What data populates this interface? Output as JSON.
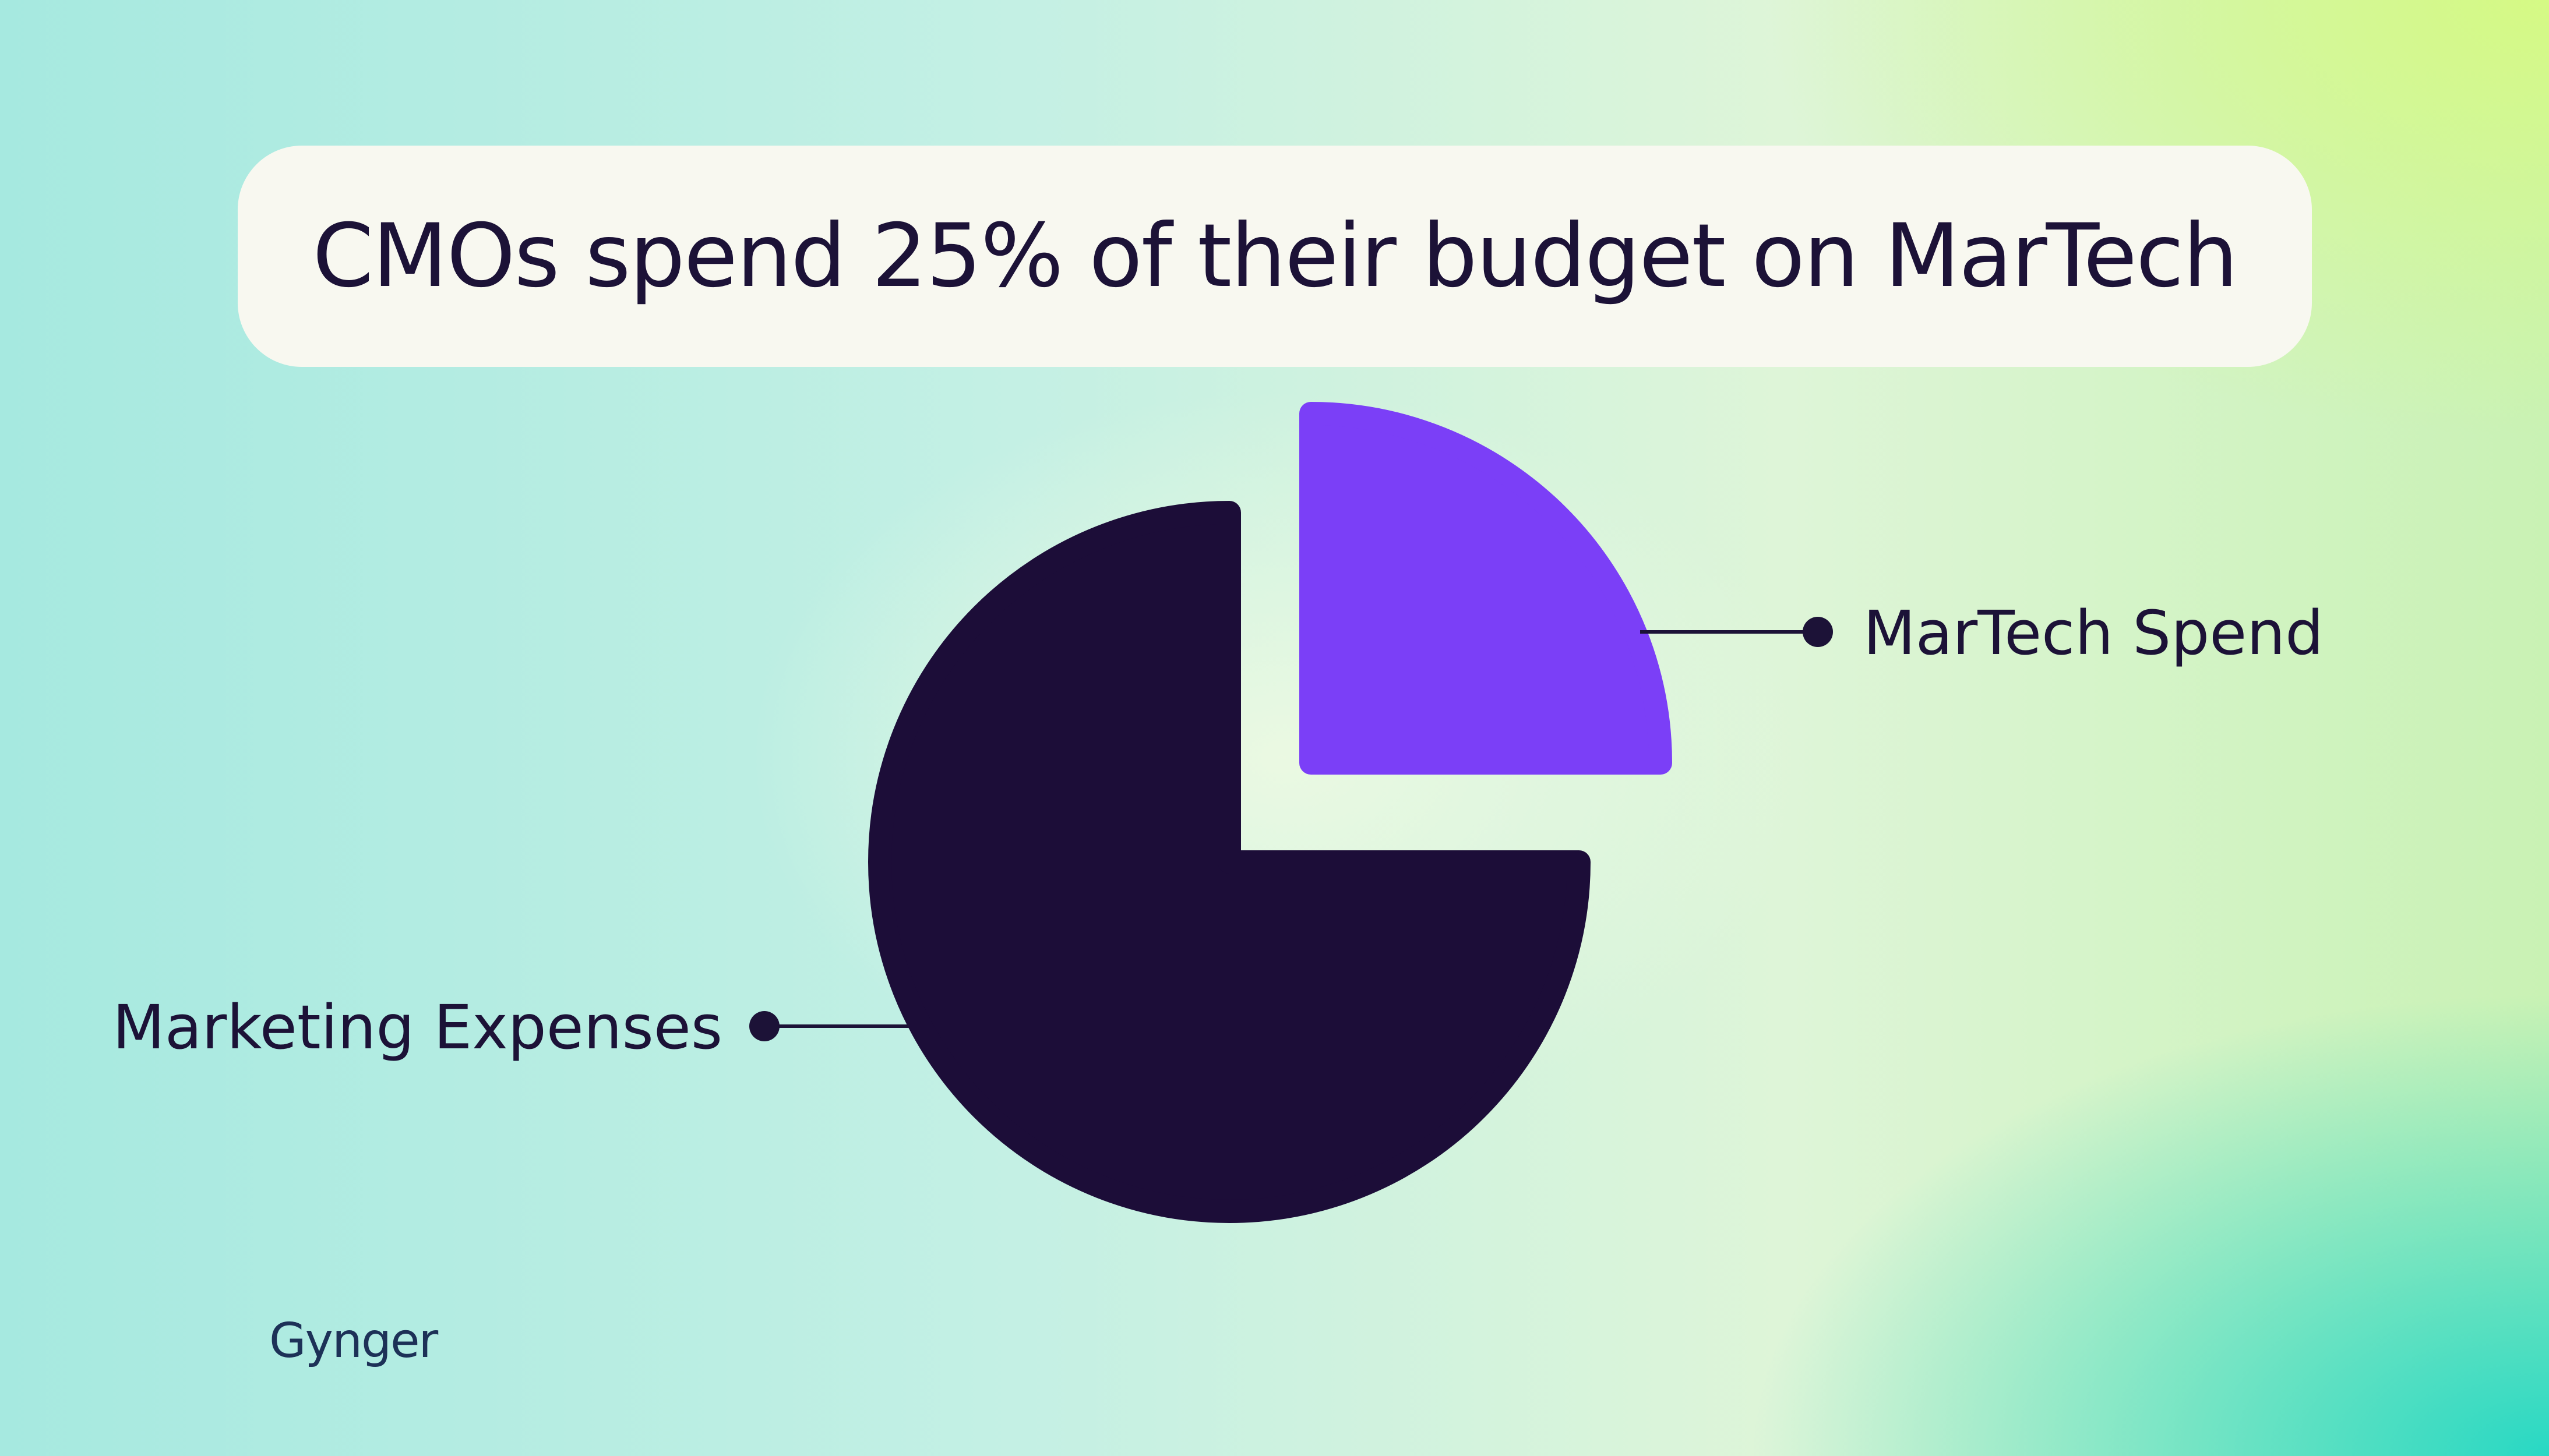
{
  "title": "CMOs spend 25% of their budget on MarTech",
  "logo": "Gynger",
  "colors": {
    "martech": "#7b3ff7",
    "marketing": "#1c0d38",
    "leader": "#1c1237",
    "title_box": "#f8f8f0"
  },
  "chart_data": {
    "type": "pie",
    "title": "CMOs spend 25% of their budget on MarTech",
    "slices": [
      {
        "label": "MarTech Spend",
        "value": 25,
        "exploded": true
      },
      {
        "label": "Marketing Expenses",
        "value": 75,
        "exploded": false
      }
    ],
    "legend": "none"
  }
}
